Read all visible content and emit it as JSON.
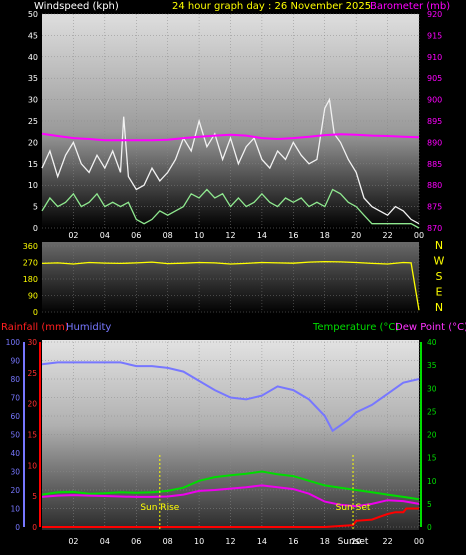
{
  "header": {
    "windspeed_label": "Windspeed (kph)",
    "title": "24 hour graph day : 26 November 2025",
    "barometer_label": "Barometer (mb)"
  },
  "lower_labels": {
    "rainfall": "Rainfall (mm)",
    "humidity": "Humidity",
    "temperature": "Temperature (°C)",
    "dewpoint": "Dew Point (°C)"
  },
  "annotations": {
    "sun_rise": "Sun Rise",
    "sun_set": "Sun Set",
    "sunset_time_label": "Sunset"
  },
  "colors": {
    "wind_gust": "#f2f2f2",
    "wind_avg": "#8fe88f",
    "barometer": "#ff00ff",
    "wind_dir": "#ffff00",
    "temperature": "#00dd00",
    "dewpoint": "#ee00ee",
    "humidity": "#7777ff",
    "rainfall": "#ff0000",
    "title": "#ffff00"
  },
  "chart_data": [
    {
      "type": "line",
      "name": "wind",
      "x_ticks": [
        "02",
        "04",
        "06",
        "08",
        "10",
        "12",
        "14",
        "16",
        "18",
        "20",
        "22",
        "00"
      ],
      "xlim": [
        0,
        24
      ],
      "y_left": {
        "label": "Windspeed (kph)",
        "ylim": [
          0,
          50
        ],
        "ticks": [
          0,
          5,
          10,
          15,
          20,
          25,
          30,
          35,
          40,
          45,
          50
        ]
      },
      "y_right": {
        "label": "Barometer (mb)",
        "ylim": [
          870,
          920
        ],
        "ticks": [
          870,
          875,
          880,
          885,
          890,
          895,
          900,
          905,
          910,
          915,
          920
        ]
      },
      "series": [
        {
          "key": "gust",
          "axis": "left",
          "x": [
            0,
            0.5,
            1,
            1.5,
            2,
            2.5,
            3,
            3.5,
            4,
            4.5,
            5,
            5.2,
            5.5,
            6,
            6.5,
            7,
            7.5,
            8,
            8.5,
            9,
            9.5,
            10,
            10.5,
            11,
            11.5,
            12,
            12.5,
            13,
            13.5,
            14,
            14.5,
            15,
            15.5,
            16,
            16.5,
            17,
            17.5,
            18,
            18.3,
            18.6,
            19,
            19.5,
            20,
            20.5,
            21,
            21.5,
            22,
            22.5,
            23,
            23.5,
            24
          ],
          "values": [
            14,
            18,
            12,
            17,
            20,
            15,
            13,
            17,
            14,
            18,
            13,
            26,
            12,
            9,
            10,
            14,
            11,
            13,
            16,
            21,
            18,
            25,
            19,
            22,
            16,
            21,
            15,
            19,
            21,
            16,
            14,
            18,
            16,
            20,
            17,
            15,
            16,
            28,
            30,
            22,
            20,
            16,
            13,
            7,
            5,
            4,
            3,
            5,
            4,
            2,
            1
          ]
        },
        {
          "key": "avg",
          "axis": "left",
          "x": [
            0,
            0.5,
            1,
            1.5,
            2,
            2.5,
            3,
            3.5,
            4,
            4.5,
            5,
            5.5,
            6,
            6.5,
            7,
            7.5,
            8,
            8.5,
            9,
            9.5,
            10,
            10.5,
            11,
            11.5,
            12,
            12.5,
            13,
            13.5,
            14,
            14.5,
            15,
            15.5,
            16,
            16.5,
            17,
            17.5,
            18,
            18.5,
            19,
            19.5,
            20,
            20.5,
            21,
            21.5,
            22,
            22.5,
            23,
            23.5,
            24
          ],
          "values": [
            4,
            7,
            5,
            6,
            8,
            5,
            6,
            8,
            5,
            6,
            5,
            6,
            2,
            1,
            2,
            4,
            3,
            4,
            5,
            8,
            7,
            9,
            7,
            8,
            5,
            7,
            5,
            6,
            8,
            6,
            5,
            7,
            6,
            7,
            5,
            6,
            5,
            9,
            8,
            6,
            5,
            3,
            1,
            1,
            1,
            1,
            1,
            1,
            0
          ]
        },
        {
          "key": "barometer",
          "axis": "right",
          "x": [
            0,
            1,
            2,
            3,
            4,
            5,
            6,
            7,
            8,
            9,
            10,
            11,
            12,
            13,
            14,
            15,
            16,
            17,
            18,
            19,
            20,
            21,
            22,
            23,
            24
          ],
          "values": [
            892,
            891.5,
            891,
            890.8,
            890.5,
            890.5,
            890.5,
            890.5,
            890.6,
            891,
            891.3,
            891.6,
            891.8,
            891.6,
            891,
            890.8,
            891,
            891.3,
            891.7,
            891.9,
            891.8,
            891.6,
            891.5,
            891.3,
            891.2
          ]
        }
      ]
    },
    {
      "type": "scatter",
      "name": "wind_direction",
      "y_ticks": [
        0,
        90,
        180,
        270,
        360
      ],
      "ylim": [
        0,
        360
      ],
      "compass": [
        "N",
        "W",
        "S",
        "E",
        "N"
      ],
      "series": [
        {
          "key": "direction",
          "x": [
            0,
            1,
            2,
            3,
            4,
            5,
            6,
            7,
            8,
            9,
            10,
            11,
            12,
            13,
            14,
            15,
            16,
            17,
            18,
            19,
            20,
            21,
            22,
            23,
            23.5,
            24
          ],
          "values": [
            265,
            268,
            262,
            270,
            267,
            265,
            268,
            272,
            264,
            266,
            270,
            268,
            262,
            265,
            270,
            268,
            266,
            272,
            275,
            273,
            270,
            265,
            262,
            270,
            268,
            10
          ]
        }
      ]
    },
    {
      "type": "line",
      "name": "temp_humidity_rain",
      "x_ticks": [
        "02",
        "04",
        "06",
        "08",
        "10",
        "12",
        "14",
        "16",
        "18",
        "20",
        "22",
        "00"
      ],
      "xlim": [
        0,
        24
      ],
      "y_rain": {
        "label": "Rainfall (mm)",
        "ylim": [
          0,
          30
        ],
        "ticks": [
          0,
          5,
          10,
          15,
          20,
          25,
          30
        ]
      },
      "y_humidity": {
        "label": "Humidity",
        "ylim": [
          0,
          100
        ],
        "ticks": [
          0,
          10,
          20,
          30,
          40,
          50,
          60,
          70,
          80,
          90,
          100
        ]
      },
      "y_temp": {
        "label": "Temperature (°C)",
        "ylim": [
          0,
          40
        ],
        "ticks": [
          0,
          5,
          10,
          15,
          20,
          25,
          30,
          35,
          40
        ]
      },
      "sun_rise_x": 7.5,
      "sun_set_x": 19.8,
      "series": [
        {
          "key": "humidity",
          "axis": "humidity",
          "x": [
            0,
            1,
            2,
            3,
            4,
            5,
            6,
            7,
            8,
            9,
            10,
            11,
            12,
            13,
            14,
            15,
            16,
            17,
            18,
            18.5,
            19,
            19.5,
            20,
            21,
            22,
            23,
            24
          ],
          "values": [
            88,
            89,
            89,
            89,
            89,
            89,
            87,
            87,
            86,
            84,
            79,
            74,
            70,
            69,
            71,
            76,
            74,
            69,
            60,
            52,
            55,
            58,
            62,
            66,
            72,
            78,
            80
          ]
        },
        {
          "key": "temperature",
          "axis": "temp",
          "x": [
            0,
            1,
            2,
            3,
            4,
            5,
            6,
            7,
            8,
            9,
            10,
            11,
            12,
            13,
            14,
            15,
            16,
            17,
            18,
            19,
            20,
            21,
            22,
            23,
            24
          ],
          "values": [
            7,
            7.5,
            7.6,
            7.2,
            7.3,
            7.5,
            7.4,
            7.5,
            7.8,
            8.5,
            10,
            10.8,
            11.2,
            11.5,
            12,
            11.4,
            11,
            10,
            9,
            8.5,
            8,
            7.5,
            7,
            6.5,
            6
          ]
        },
        {
          "key": "dewpoint",
          "axis": "temp",
          "x": [
            0,
            1,
            2,
            3,
            4,
            5,
            6,
            7,
            8,
            9,
            10,
            11,
            12,
            13,
            14,
            15,
            16,
            17,
            18,
            19,
            20,
            21,
            22,
            23,
            24
          ],
          "values": [
            6.5,
            6.8,
            6.9,
            6.8,
            6.7,
            6.6,
            6.5,
            6.5,
            6.6,
            7,
            7.8,
            8,
            8.3,
            8.6,
            9,
            8.6,
            8.2,
            7.2,
            5.5,
            4.8,
            4.5,
            5,
            5.8,
            5.6,
            5
          ]
        },
        {
          "key": "rainfall",
          "axis": "rain",
          "x": [
            0,
            18,
            19.8,
            20,
            21,
            22,
            22.5,
            23,
            23.2,
            24
          ],
          "values": [
            0,
            0,
            0.3,
            1,
            1.2,
            2.1,
            2.4,
            2.4,
            3,
            3
          ]
        }
      ]
    }
  ]
}
